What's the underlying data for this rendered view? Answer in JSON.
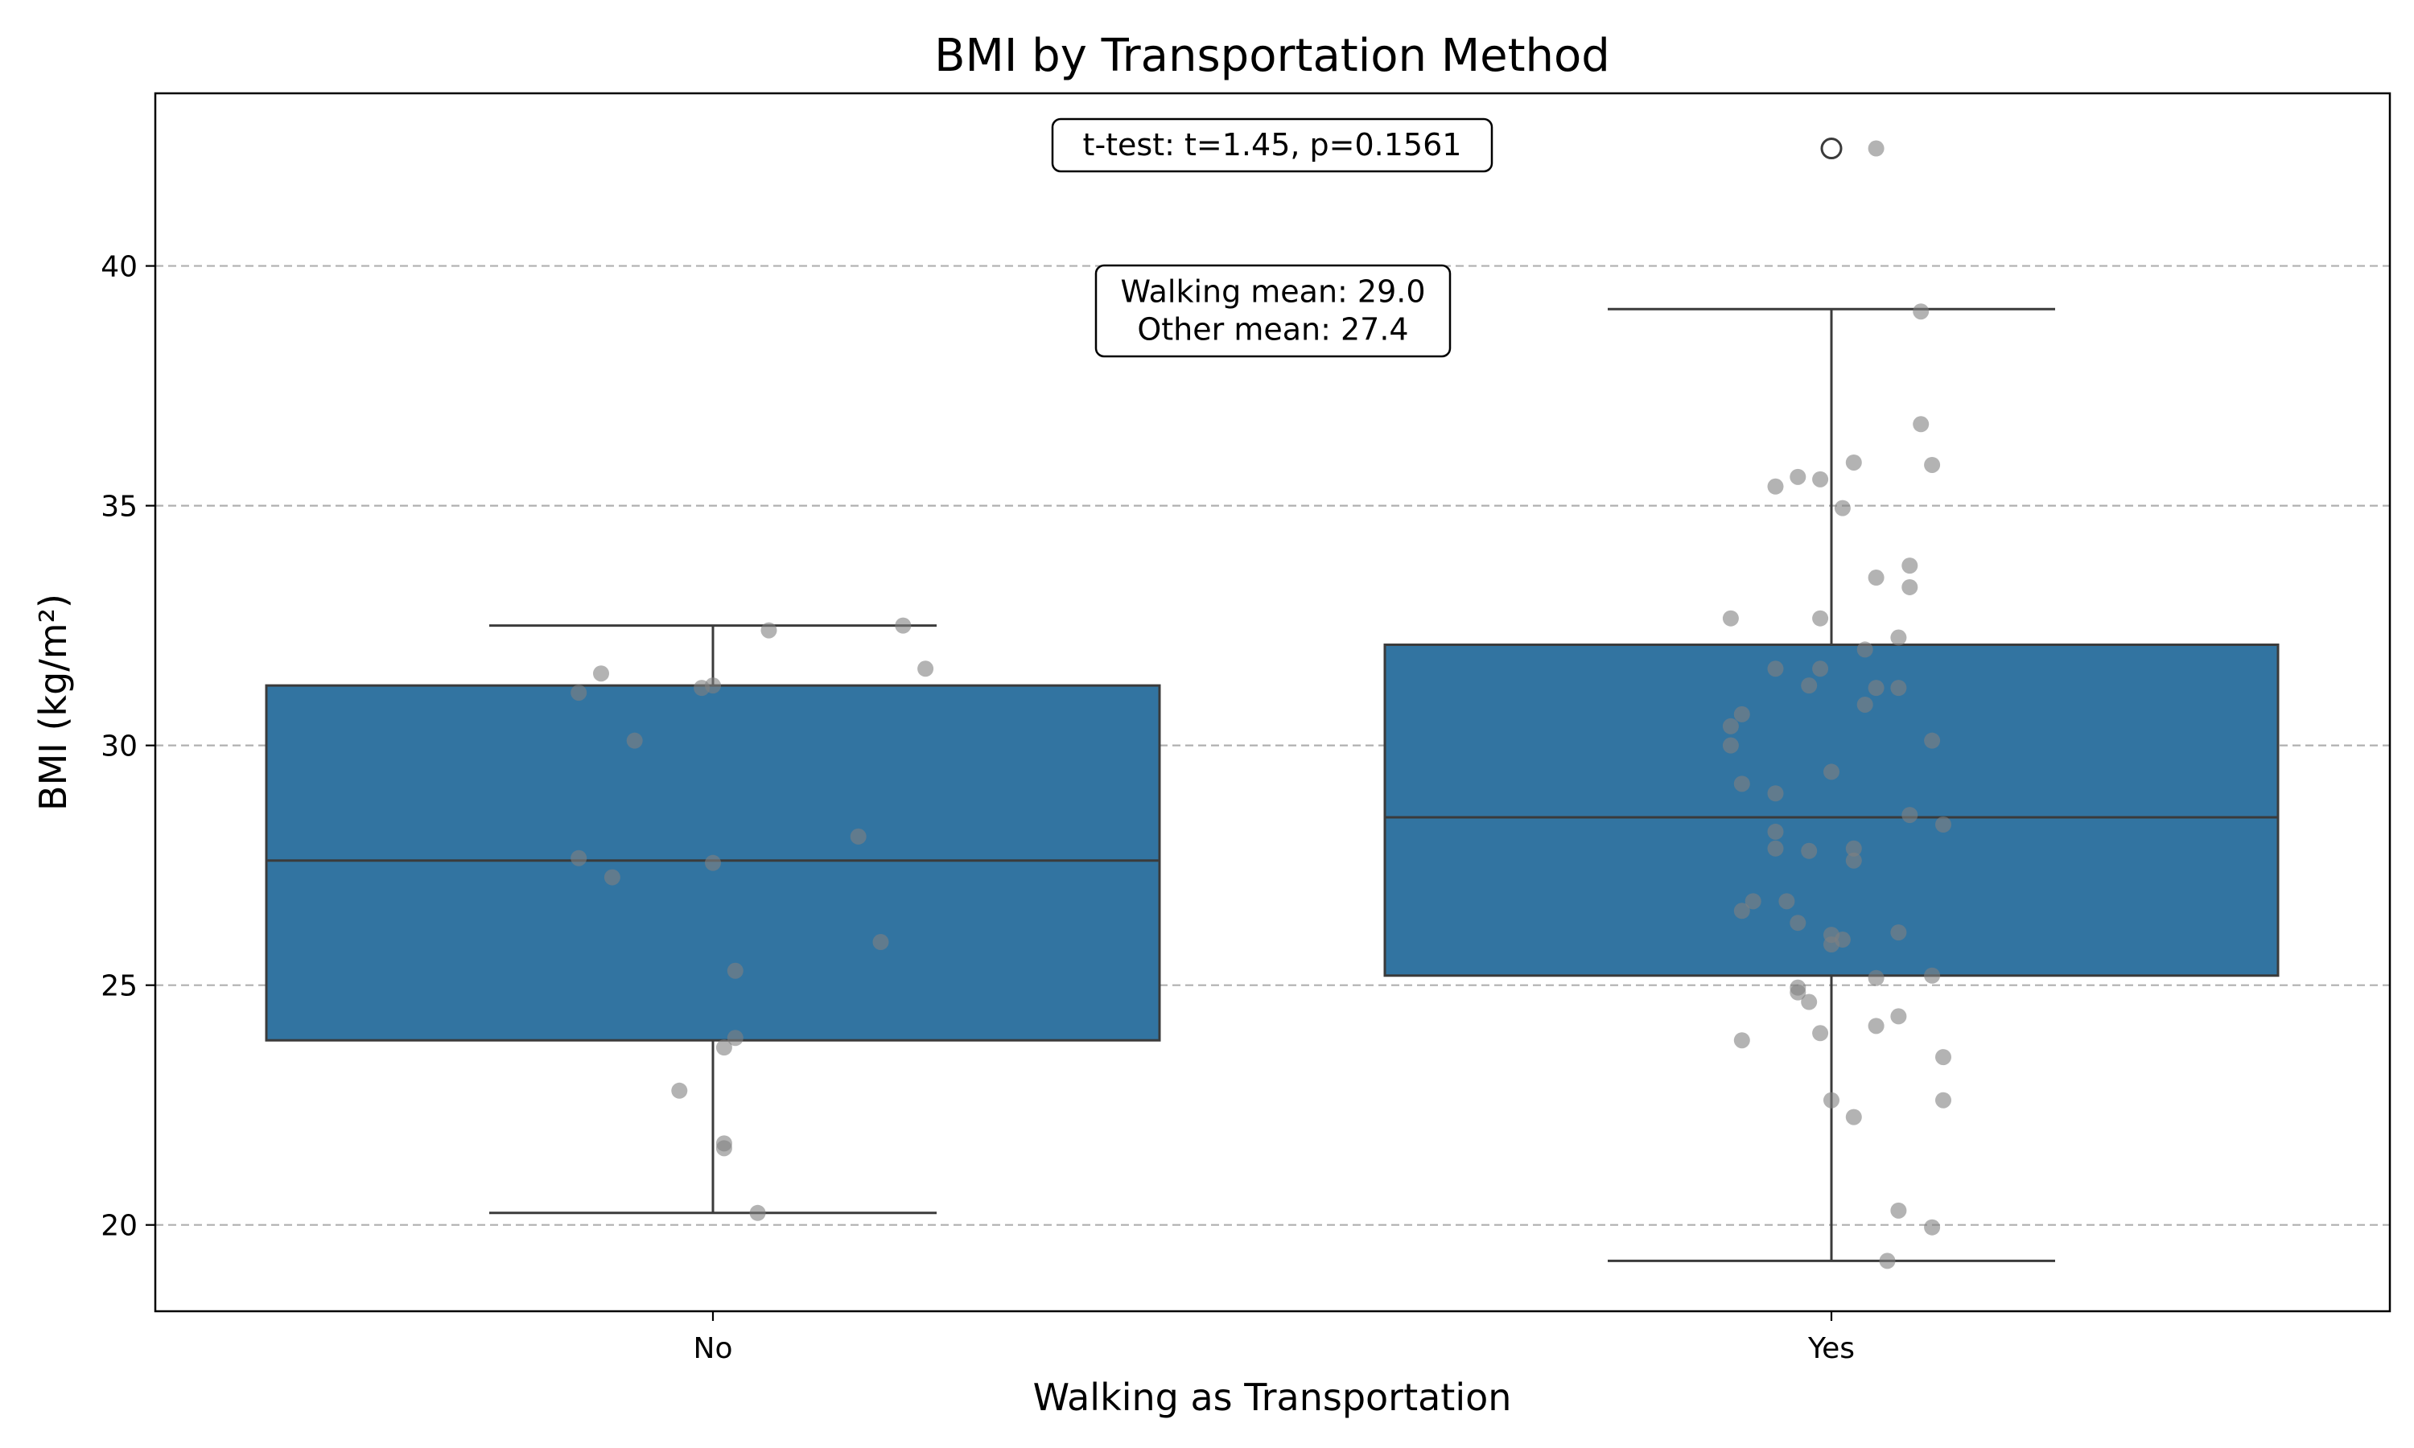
{
  "chart_data": {
    "type": "box",
    "title": "BMI by Transportation Method",
    "xlabel": "Walking as Transportation",
    "ylabel": "BMI (kg/m²)",
    "categories": [
      "No",
      "Yes"
    ],
    "ylim": [
      18.2,
      43.6
    ],
    "yticks": [
      20,
      25,
      30,
      35,
      40
    ],
    "grid": "y-dashed",
    "box_color": "#3274a1",
    "point_color": "#808080",
    "boxes": [
      {
        "category": "No",
        "whisker_low": 20.25,
        "q1": 23.85,
        "median": 27.6,
        "q3": 31.25,
        "whisker_high": 32.5,
        "outliers": []
      },
      {
        "category": "Yes",
        "whisker_low": 19.25,
        "q1": 25.2,
        "median": 28.5,
        "q3": 32.1,
        "whisker_high": 39.1,
        "outliers": [
          42.45
        ]
      }
    ],
    "points": [
      {
        "category": "No",
        "values": [
          {
            "x": -0.1,
            "y": 31.5
          },
          {
            "x": 0.05,
            "y": 32.4
          },
          {
            "x": 0.17,
            "y": 32.5
          },
          {
            "x": -0.12,
            "y": 31.1
          },
          {
            "x": -0.01,
            "y": 31.2
          },
          {
            "x": 0.19,
            "y": 31.6
          },
          {
            "x": 0.0,
            "y": 31.25
          },
          {
            "x": -0.07,
            "y": 30.1
          },
          {
            "x": -0.12,
            "y": 27.65
          },
          {
            "x": -0.09,
            "y": 27.25
          },
          {
            "x": 0.0,
            "y": 27.55
          },
          {
            "x": 0.13,
            "y": 28.1
          },
          {
            "x": 0.15,
            "y": 25.9
          },
          {
            "x": 0.02,
            "y": 25.3
          },
          {
            "x": 0.02,
            "y": 23.9
          },
          {
            "x": 0.01,
            "y": 23.7
          },
          {
            "x": -0.03,
            "y": 22.8
          },
          {
            "x": 0.01,
            "y": 21.7
          },
          {
            "x": 0.01,
            "y": 21.6
          },
          {
            "x": 0.04,
            "y": 20.25
          }
        ]
      },
      {
        "category": "Yes",
        "values": [
          {
            "x": 0.04,
            "y": 42.45
          },
          {
            "x": 0.08,
            "y": 39.05
          },
          {
            "x": 0.08,
            "y": 36.7
          },
          {
            "x": 0.09,
            "y": 35.85
          },
          {
            "x": 0.02,
            "y": 35.9
          },
          {
            "x": -0.03,
            "y": 35.6
          },
          {
            "x": -0.05,
            "y": 35.4
          },
          {
            "x": -0.01,
            "y": 35.55
          },
          {
            "x": 0.01,
            "y": 34.95
          },
          {
            "x": 0.04,
            "y": 33.5
          },
          {
            "x": 0.07,
            "y": 33.75
          },
          {
            "x": 0.07,
            "y": 33.3
          },
          {
            "x": -0.09,
            "y": 32.65
          },
          {
            "x": -0.01,
            "y": 32.65
          },
          {
            "x": 0.06,
            "y": 32.25
          },
          {
            "x": 0.03,
            "y": 32.0
          },
          {
            "x": -0.05,
            "y": 31.6
          },
          {
            "x": -0.01,
            "y": 31.6
          },
          {
            "x": -0.02,
            "y": 31.25
          },
          {
            "x": 0.04,
            "y": 31.2
          },
          {
            "x": 0.06,
            "y": 31.2
          },
          {
            "x": 0.03,
            "y": 30.85
          },
          {
            "x": -0.08,
            "y": 30.65
          },
          {
            "x": -0.09,
            "y": 30.4
          },
          {
            "x": -0.09,
            "y": 30.0
          },
          {
            "x": 0.09,
            "y": 30.1
          },
          {
            "x": -0.08,
            "y": 29.2
          },
          {
            "x": 0.0,
            "y": 29.45
          },
          {
            "x": -0.05,
            "y": 29.0
          },
          {
            "x": 0.07,
            "y": 28.55
          },
          {
            "x": 0.1,
            "y": 28.35
          },
          {
            "x": -0.05,
            "y": 28.2
          },
          {
            "x": -0.05,
            "y": 27.85
          },
          {
            "x": -0.02,
            "y": 27.8
          },
          {
            "x": 0.02,
            "y": 27.85
          },
          {
            "x": 0.02,
            "y": 27.6
          },
          {
            "x": -0.07,
            "y": 26.75
          },
          {
            "x": -0.04,
            "y": 26.75
          },
          {
            "x": -0.08,
            "y": 26.55
          },
          {
            "x": -0.03,
            "y": 26.3
          },
          {
            "x": 0.0,
            "y": 26.05
          },
          {
            "x": 0.01,
            "y": 25.95
          },
          {
            "x": 0.0,
            "y": 25.85
          },
          {
            "x": 0.06,
            "y": 26.1
          },
          {
            "x": 0.04,
            "y": 25.15
          },
          {
            "x": 0.09,
            "y": 25.2
          },
          {
            "x": -0.03,
            "y": 24.95
          },
          {
            "x": -0.03,
            "y": 24.85
          },
          {
            "x": -0.02,
            "y": 24.65
          },
          {
            "x": 0.06,
            "y": 24.35
          },
          {
            "x": 0.04,
            "y": 24.15
          },
          {
            "x": -0.01,
            "y": 24.0
          },
          {
            "x": -0.08,
            "y": 23.85
          },
          {
            "x": 0.1,
            "y": 23.5
          },
          {
            "x": 0.0,
            "y": 22.6
          },
          {
            "x": 0.1,
            "y": 22.6
          },
          {
            "x": 0.02,
            "y": 22.25
          },
          {
            "x": 0.06,
            "y": 20.3
          },
          {
            "x": 0.09,
            "y": 19.95
          },
          {
            "x": 0.05,
            "y": 19.25
          }
        ]
      }
    ],
    "annotations": [
      {
        "name": "ttest",
        "lines": [
          "t-test: t=1.45, p=0.1561"
        ]
      },
      {
        "name": "means",
        "lines": [
          "Walking mean: 29.0",
          "Other mean: 27.4"
        ]
      }
    ]
  }
}
